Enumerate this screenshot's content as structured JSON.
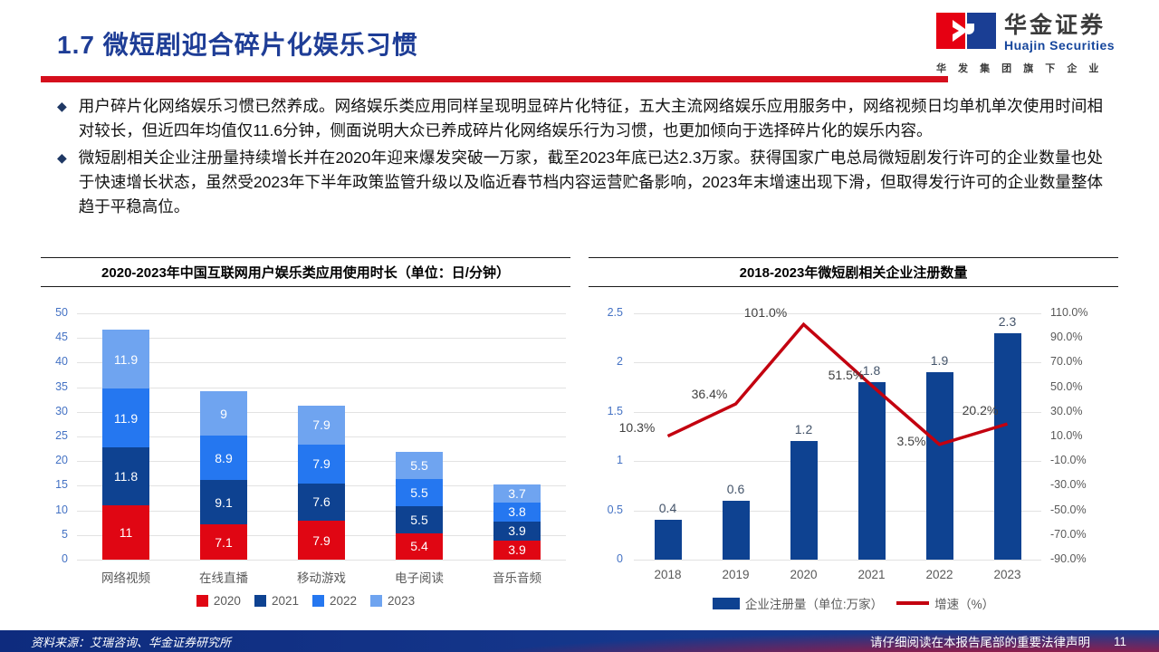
{
  "header": {
    "title": "1.7 微短剧迎合碎片化娱乐习惯",
    "logo": {
      "name_cn": "华金证券",
      "name_en": "Huajin Securities",
      "tagline": "华 发 集 团 旗 下 企 业"
    }
  },
  "bullets": [
    "用户碎片化网络娱乐习惯已然养成。网络娱乐类应用同样呈现明显碎片化特征，五大主流网络娱乐应用服务中，网络视频日均单机单次使用时间相对较长，但近四年均值仅11.6分钟，侧面说明大众已养成碎片化网络娱乐行为习惯，也更加倾向于选择碎片化的娱乐内容。",
    "微短剧相关企业注册量持续增长并在2020年迎来爆发突破一万家，截至2023年底已达2.3万家。获得国家广电总局微短剧发行许可的企业数量也处于快速增长状态，虽然受2023年下半年政策监管升级以及临近春节档内容运营贮备影响，2023年末增速出现下滑，但取得发行许可的企业数量整体趋于平稳高位。"
  ],
  "chart_data": [
    {
      "type": "bar",
      "subtype": "stacked",
      "title": "2020-2023年中国互联网用户娱乐类应用使用时长（单位：日/分钟）",
      "categories": [
        "网络视频",
        "在线直播",
        "移动游戏",
        "电子阅读",
        "音乐音频"
      ],
      "series": [
        {
          "name": "2020",
          "color": "#E00613",
          "values": [
            11,
            7.1,
            7.9,
            5.4,
            3.9
          ],
          "labels": [
            "11",
            "7.1",
            "7.9",
            "5.4",
            "3.9"
          ]
        },
        {
          "name": "2021",
          "color": "#0E4291",
          "values": [
            11.8,
            9.1,
            7.6,
            5.5,
            3.9
          ],
          "labels": [
            "11.8",
            "9.1",
            "7.6",
            "5.5",
            "3.9"
          ]
        },
        {
          "name": "2022",
          "color": "#2577F0",
          "values": [
            11.9,
            8.9,
            7.9,
            5.5,
            3.8
          ],
          "labels": [
            "11.9",
            "8.9",
            "7.9",
            "5.5",
            "3.8"
          ]
        },
        {
          "name": "2023",
          "color": "#6FA4F0",
          "values": [
            11.9,
            9,
            7.9,
            5.5,
            3.7
          ],
          "labels": [
            "11.9",
            "9",
            "7.9",
            "5.5",
            "3.7"
          ]
        }
      ],
      "ylim": [
        0,
        50
      ],
      "ytick": 5,
      "grid": true,
      "legend_position": "bottom"
    },
    {
      "type": "bar",
      "subtype": "bar-line-combo",
      "title": "2018-2023年微短剧相关企业注册数量",
      "categories": [
        "2018",
        "2019",
        "2020",
        "2021",
        "2022",
        "2023"
      ],
      "bar": {
        "name": "企业注册量（单位:万家）",
        "color": "#0E4291",
        "values": [
          0.4,
          0.6,
          1.2,
          1.8,
          1.9,
          2.3
        ],
        "labels": [
          "0.4",
          "0.6",
          "1.2",
          "1.8",
          "1.9",
          "2.3"
        ]
      },
      "line": {
        "name": "增速（%）",
        "color": "#C3000F",
        "values": [
          10.3,
          36.4,
          101.0,
          51.5,
          3.5,
          20.2
        ],
        "labels": [
          "10.3%",
          "36.4%",
          "101.0%",
          "51.5%",
          "3.5%",
          "20.2%"
        ]
      },
      "ylim_left": [
        0,
        2.5
      ],
      "ytick_left": 0.5,
      "ylim_right": [
        -90,
        110
      ],
      "right_ticks": [
        "110.0%",
        "90.0%",
        "70.0%",
        "50.0%",
        "30.0%",
        "10.0%",
        "-10.0%",
        "-30.0%",
        "-50.0%",
        "-70.0%",
        "-90.0%"
      ],
      "grid": true,
      "legend_position": "bottom"
    }
  ],
  "footer": {
    "source": "资料来源：艾瑞咨询、华金证券研究所",
    "disclaimer": "请仔细阅读在本报告尾部的重要法律声明",
    "page": "11"
  }
}
